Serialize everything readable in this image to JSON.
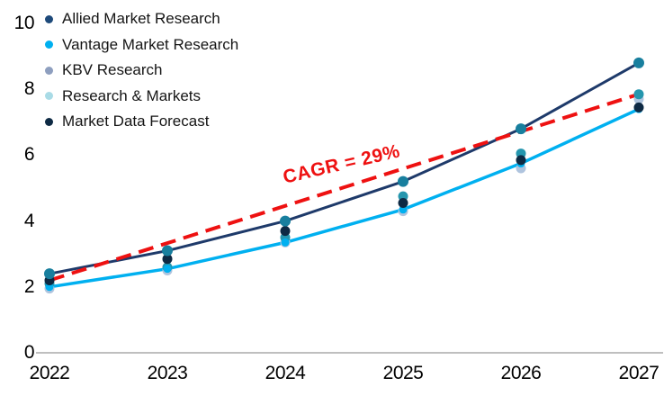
{
  "chart_data": {
    "type": "line",
    "title": "",
    "xlabel": "",
    "ylabel": "",
    "categories": [
      "2022",
      "2023",
      "2024",
      "2025",
      "2026",
      "2027"
    ],
    "y_axis": {
      "ticks": [
        "0",
        "2",
        "4",
        "6",
        "8",
        "10"
      ],
      "range": [
        0,
        10
      ]
    },
    "grid": false,
    "legend_position": "top-left",
    "axis_color": "#BFBFBF",
    "tick_color": "#000000",
    "series": [
      {
        "name": "Allied Market Research",
        "legend_color": "#1E4A7A",
        "has_line": true,
        "line_color": "#1E3A6A",
        "line_width": 3,
        "marker_color": "#187F9E",
        "marker_radius": 6,
        "values": [
          2.4,
          3.1,
          4.0,
          5.2,
          6.8,
          8.8
        ]
      },
      {
        "name": "Vantage Market Research",
        "legend_color": "#00B0F0",
        "has_line": true,
        "line_color": "#00B0F0",
        "line_width": 3.5,
        "marker_color": "#00B0F0",
        "marker_radius": 4.5,
        "values": [
          2.0,
          2.55,
          3.35,
          4.35,
          5.75,
          7.4
        ]
      },
      {
        "name": "KBV Research",
        "legend_color": "#8E9FBF",
        "has_line": false,
        "line_color": "#8E9FBF",
        "line_width": 0,
        "marker_color": "#2596AE",
        "marker_radius": 5.5,
        "values": [
          2.1,
          2.6,
          3.5,
          4.75,
          6.05,
          7.85
        ]
      },
      {
        "name": "Research & Markets",
        "legend_color": "#A9DBE6",
        "has_line": false,
        "line_color": "#A9DBE6",
        "line_width": 0,
        "marker_color": "#AFC4DE",
        "marker_radius": 5.5,
        "values": [
          1.95,
          2.5,
          3.35,
          4.3,
          5.6,
          7.7
        ]
      },
      {
        "name": "Market Data Forecast",
        "legend_color": "#0E2A44",
        "has_line": false,
        "line_color": "#0E2A44",
        "line_width": 0,
        "marker_color": "#0E2A44",
        "marker_radius": 5.5,
        "values": [
          2.2,
          2.85,
          3.7,
          4.55,
          5.85,
          7.45
        ]
      }
    ],
    "trend": {
      "label": "CAGR = 29%",
      "color": "#EE1111",
      "style": "dashed",
      "line_width": 4,
      "start_value": 2.2,
      "end_value": 7.85
    }
  }
}
